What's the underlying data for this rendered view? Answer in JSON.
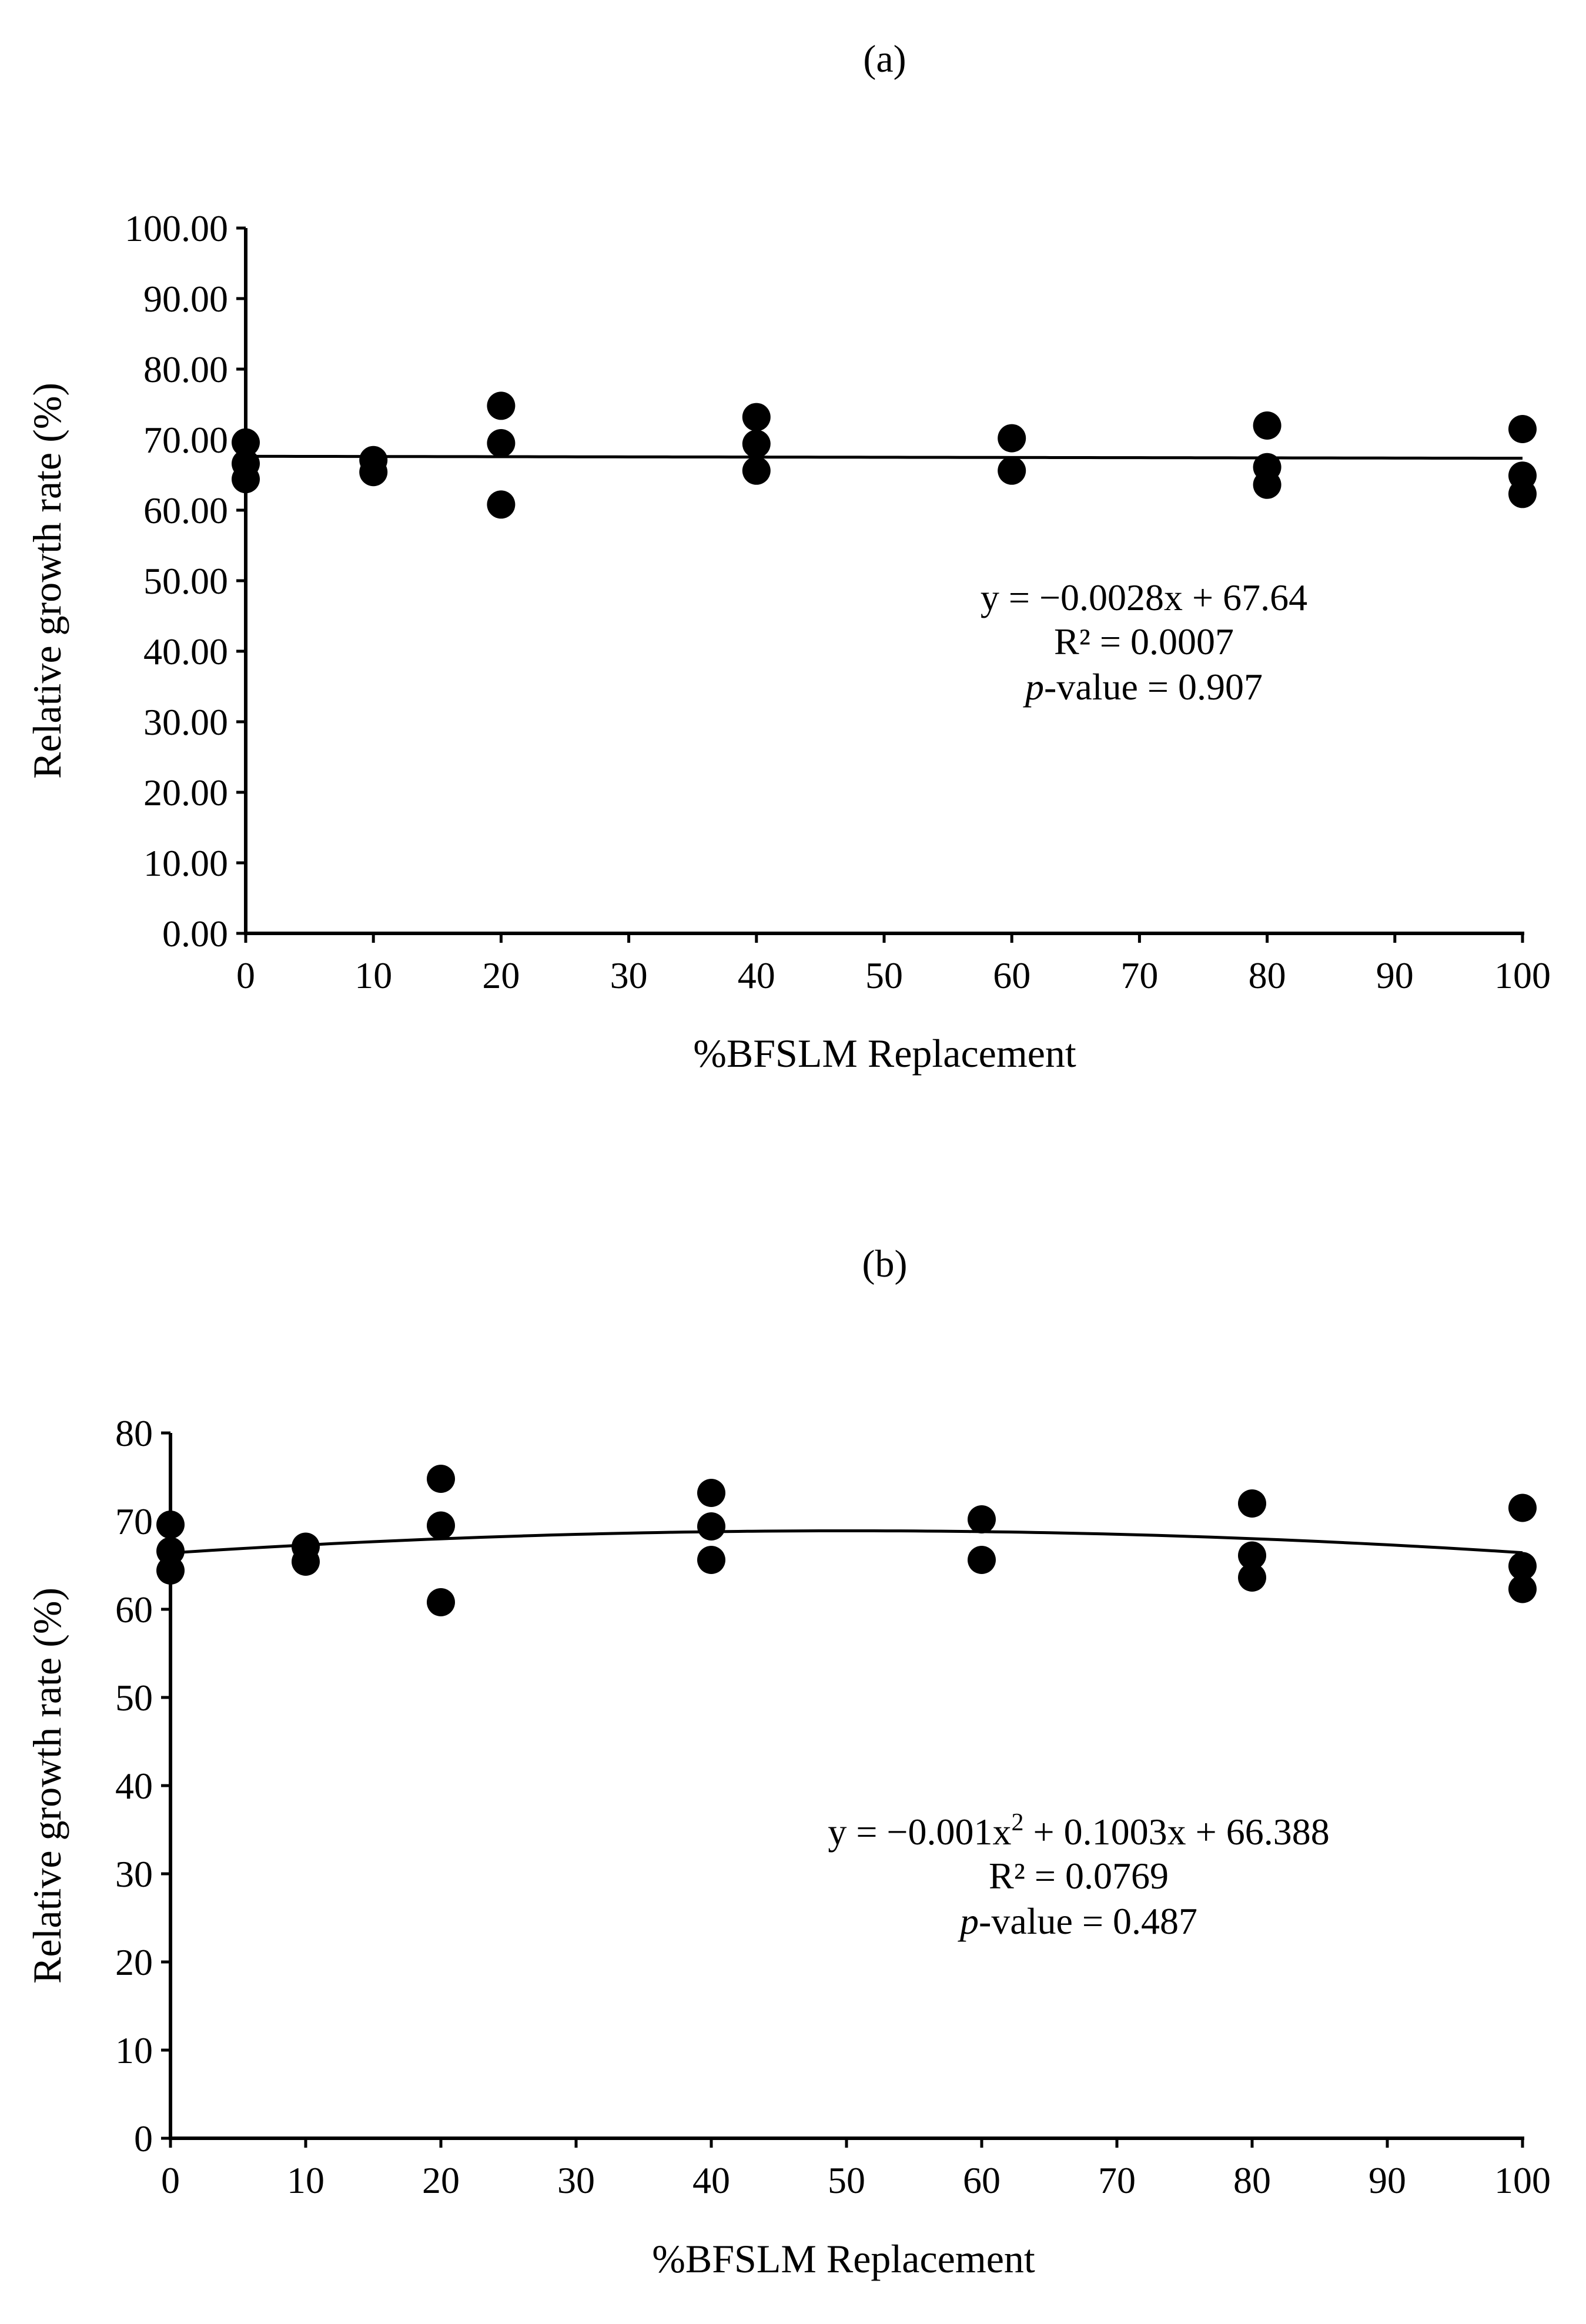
{
  "colors": {
    "marker": "#000000",
    "axis": "#000000",
    "background": "#ffffff"
  },
  "chart_data": [
    {
      "type": "scatter",
      "panel_label": "(a)",
      "xlabel": "%BFSLM Replacement",
      "ylabel": "Relative growth rate (%)",
      "xlim": [
        0,
        100
      ],
      "ylim": [
        0,
        100
      ],
      "x_ticks": [
        "0",
        "10",
        "20",
        "30",
        "40",
        "50",
        "60",
        "70",
        "80",
        "90",
        "100"
      ],
      "y_ticks": [
        "0.00",
        "10.00",
        "20.00",
        "30.00",
        "40.00",
        "50.00",
        "60.00",
        "70.00",
        "80.00",
        "90.00",
        "100.00"
      ],
      "points": [
        {
          "x": 0,
          "y": 69.6
        },
        {
          "x": 0,
          "y": 66.6
        },
        {
          "x": 0,
          "y": 64.4
        },
        {
          "x": 10,
          "y": 67.1
        },
        {
          "x": 10,
          "y": 65.4
        },
        {
          "x": 20,
          "y": 74.8
        },
        {
          "x": 20,
          "y": 69.5
        },
        {
          "x": 20,
          "y": 60.8
        },
        {
          "x": 40,
          "y": 73.2
        },
        {
          "x": 40,
          "y": 69.4
        },
        {
          "x": 40,
          "y": 65.6
        },
        {
          "x": 60,
          "y": 70.2
        },
        {
          "x": 60,
          "y": 65.6
        },
        {
          "x": 80,
          "y": 72.0
        },
        {
          "x": 80,
          "y": 66.1
        },
        {
          "x": 80,
          "y": 63.6
        },
        {
          "x": 100,
          "y": 71.5
        },
        {
          "x": 100,
          "y": 64.9
        },
        {
          "x": 100,
          "y": 62.3
        }
      ],
      "trendline": {
        "kind": "linear",
        "coefficients": [
          -0.0028,
          67.64
        ]
      },
      "annotation": {
        "equation": "y = −0.0028x + 67.64",
        "r2": "R² = 0.0007",
        "p_italic": "p",
        "p_rest": "-value = 0.907"
      }
    },
    {
      "type": "scatter",
      "panel_label": "(b)",
      "xlabel": "%BFSLM Replacement",
      "ylabel": "Relative growth rate (%)",
      "xlim": [
        0,
        100
      ],
      "ylim": [
        0,
        80
      ],
      "x_ticks": [
        "0",
        "10",
        "20",
        "30",
        "40",
        "50",
        "60",
        "70",
        "80",
        "90",
        "100"
      ],
      "y_ticks": [
        "0",
        "10",
        "20",
        "30",
        "40",
        "50",
        "60",
        "70",
        "80"
      ],
      "points": [
        {
          "x": 0,
          "y": 69.6
        },
        {
          "x": 0,
          "y": 66.6
        },
        {
          "x": 0,
          "y": 64.4
        },
        {
          "x": 10,
          "y": 67.1
        },
        {
          "x": 10,
          "y": 65.4
        },
        {
          "x": 20,
          "y": 74.8
        },
        {
          "x": 20,
          "y": 69.5
        },
        {
          "x": 20,
          "y": 60.8
        },
        {
          "x": 40,
          "y": 73.2
        },
        {
          "x": 40,
          "y": 69.4
        },
        {
          "x": 40,
          "y": 65.6
        },
        {
          "x": 60,
          "y": 70.2
        },
        {
          "x": 60,
          "y": 65.6
        },
        {
          "x": 80,
          "y": 72.0
        },
        {
          "x": 80,
          "y": 66.1
        },
        {
          "x": 80,
          "y": 63.6
        },
        {
          "x": 100,
          "y": 71.5
        },
        {
          "x": 100,
          "y": 64.9
        },
        {
          "x": 100,
          "y": 62.3
        }
      ],
      "trendline": {
        "kind": "quadratic",
        "coefficients": [
          -0.001,
          0.1003,
          66.388
        ]
      },
      "annotation": {
        "equation_before_sup": "y = −0.001x",
        "equation_sup": "2",
        "equation_after_sup": " + 0.1003x + 66.388",
        "r2": "R² = 0.0769",
        "p_italic": "p",
        "p_rest": "-value = 0.487"
      }
    }
  ]
}
